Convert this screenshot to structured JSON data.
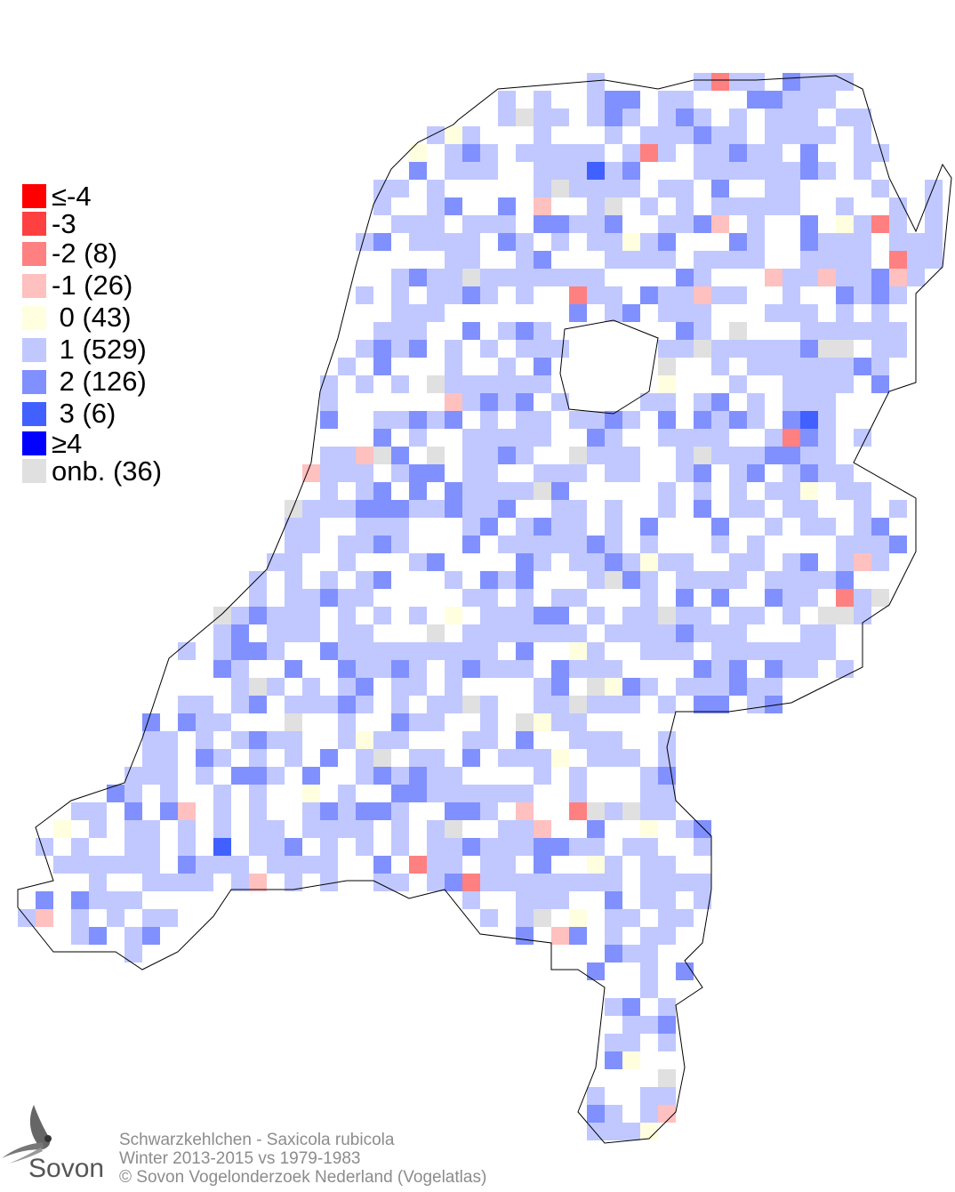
{
  "legend": {
    "items": [
      {
        "label": "≤-4",
        "color": "#ff0000"
      },
      {
        "label": "-3",
        "color": "#ff4040"
      },
      {
        "label": "-2 (8)",
        "color": "#ff8080"
      },
      {
        "label": "-1 (26)",
        "color": "#ffc0c0"
      },
      {
        "label": " 0 (43)",
        "color": "#ffffe0"
      },
      {
        "label": " 1 (529)",
        "color": "#c0c8ff"
      },
      {
        "label": " 2 (126)",
        "color": "#8090ff"
      },
      {
        "label": " 3 (6)",
        "color": "#4060ff"
      },
      {
        "label": "≥4",
        "color": "#0000ff"
      },
      {
        "label": "onb. (36)",
        "color": "#e0e0e0"
      }
    ]
  },
  "footer": {
    "species": "Schwarzkehlchen - Saxicola rubicola",
    "period": "Winter 2013-2015 vs 1979-1983",
    "copyright": "© Sovon Vogelonderzoek Nederland (Vogelatlas)"
  },
  "logo": {
    "text": "Sovon"
  }
}
